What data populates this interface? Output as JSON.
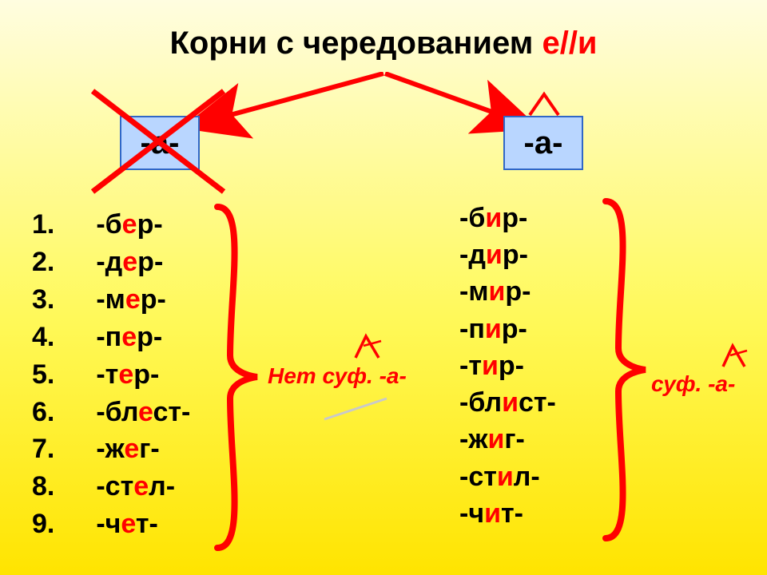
{
  "title_prefix": "Корни с чередованием ",
  "title_highlight": "е//и",
  "box_label": "-а-",
  "left_roots": [
    {
      "n": "1.",
      "pre": "-б",
      "v": "е",
      "post": "р-"
    },
    {
      "n": "2.",
      "pre": "-д",
      "v": "е",
      "post": "р-"
    },
    {
      "n": "3.",
      "pre": "-м",
      "v": "е",
      "post": "р-"
    },
    {
      "n": "4.",
      "pre": "-п",
      "v": "е",
      "post": "р-"
    },
    {
      "n": "5.",
      "pre": "-т",
      "v": "е",
      "post": "р-"
    },
    {
      "n": "6.",
      "pre": "-бл",
      "v": "е",
      "post": "ст-"
    },
    {
      "n": "7.",
      "pre": "-ж",
      "v": "е",
      "post": "г-"
    },
    {
      "n": "8.",
      "pre": "-ст",
      "v": "е",
      "post": "л-"
    },
    {
      "n": "9.",
      "pre": "-ч",
      "v": "е",
      "post": "т-"
    }
  ],
  "right_roots": [
    {
      "pre": "-б",
      "v": "и",
      "post": "р-"
    },
    {
      "pre": "-д",
      "v": "и",
      "post": "р-"
    },
    {
      "pre": "-м",
      "v": "и",
      "post": "р-"
    },
    {
      "pre": "-п",
      "v": "и",
      "post": "р-"
    },
    {
      "pre": "-т",
      "v": "и",
      "post": "р-"
    },
    {
      "pre": "-бл",
      "v": "и",
      "post": "ст-"
    },
    {
      "pre": "-ж",
      "v": "и",
      "post": "г-"
    },
    {
      "pre": "-ст",
      "v": "и",
      "post": "л-"
    },
    {
      "pre": "-ч",
      "v": "и",
      "post": "т-"
    }
  ],
  "note_left": "Нет суф. -а-",
  "note_right": "суф. -а-",
  "colors": {
    "accent_red": "#ff0000",
    "box_fill": "#b9d6ff",
    "box_border": "#3067c7",
    "brace": "#ff0000",
    "text": "#000000"
  }
}
